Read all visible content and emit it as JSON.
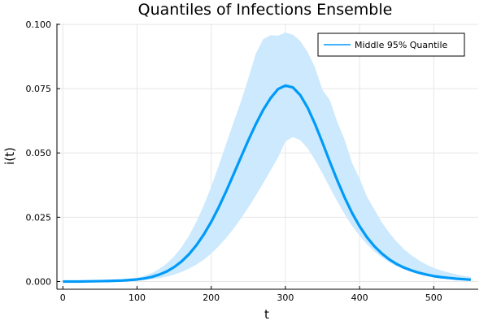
{
  "chart_data": {
    "type": "line",
    "title": "Quantiles of Infections Ensemble",
    "xlabel": "t",
    "ylabel": "i(t)",
    "xlim": [
      -8,
      560
    ],
    "ylim": [
      -0.003,
      0.1003
    ],
    "x_ticks": [
      0,
      100,
      200,
      300,
      400,
      500
    ],
    "x_tick_labels": [
      "0",
      "100",
      "200",
      "300",
      "400",
      "500"
    ],
    "y_ticks": [
      0.0,
      0.025,
      0.05,
      0.075,
      0.1
    ],
    "y_tick_labels": [
      "0.000",
      "0.025",
      "0.050",
      "0.075",
      "0.100"
    ],
    "grid": true,
    "legend_position": "top-right",
    "colors": {
      "line": "#009af9",
      "band": "#cce9fd"
    },
    "series": [
      {
        "name": "Middle 95% Quantile",
        "x": [
          0,
          20,
          40,
          60,
          80,
          100,
          110,
          120,
          130,
          140,
          150,
          160,
          170,
          180,
          190,
          200,
          210,
          220,
          230,
          240,
          250,
          260,
          270,
          280,
          290,
          300,
          310,
          320,
          330,
          340,
          350,
          360,
          370,
          380,
          390,
          400,
          410,
          420,
          430,
          440,
          450,
          460,
          470,
          480,
          490,
          500,
          510,
          520,
          530,
          540,
          550
        ],
        "median": [
          0.0,
          0.0,
          0.0001,
          0.0002,
          0.0004,
          0.0008,
          0.0012,
          0.0018,
          0.0027,
          0.0039,
          0.0056,
          0.0078,
          0.0106,
          0.0141,
          0.0183,
          0.0232,
          0.0288,
          0.035,
          0.0416,
          0.0483,
          0.0549,
          0.0611,
          0.0667,
          0.0713,
          0.0748,
          0.0762,
          0.0755,
          0.0725,
          0.0676,
          0.0612,
          0.054,
          0.0465,
          0.0393,
          0.0326,
          0.0266,
          0.0215,
          0.0172,
          0.0137,
          0.0109,
          0.0086,
          0.0068,
          0.0054,
          0.0043,
          0.0034,
          0.0027,
          0.0021,
          0.0017,
          0.0014,
          0.0011,
          0.0009,
          0.0007
        ],
        "lower": [
          0.0,
          0.0,
          0.0,
          0.0001,
          0.0002,
          0.0004,
          0.0006,
          0.0009,
          0.0013,
          0.0019,
          0.0027,
          0.0037,
          0.005,
          0.0066,
          0.0085,
          0.0109,
          0.0137,
          0.0169,
          0.0205,
          0.0245,
          0.0288,
          0.0334,
          0.0382,
          0.0432,
          0.0482,
          0.0545,
          0.0562,
          0.055,
          0.0518,
          0.0472,
          0.042,
          0.0365,
          0.0311,
          0.0261,
          0.0216,
          0.0178,
          0.0145,
          0.0117,
          0.0094,
          0.0075,
          0.006,
          0.0047,
          0.0037,
          0.0029,
          0.0023,
          0.0018,
          0.0014,
          0.0011,
          0.0008,
          0.0006,
          0.0005
        ],
        "upper": [
          0.0,
          0.0001,
          0.0002,
          0.0004,
          0.0008,
          0.0015,
          0.0022,
          0.0033,
          0.0049,
          0.007,
          0.0098,
          0.0133,
          0.0178,
          0.0232,
          0.0296,
          0.0369,
          0.0449,
          0.0534,
          0.0618,
          0.0699,
          0.0789,
          0.0885,
          0.0942,
          0.0958,
          0.0956,
          0.0968,
          0.096,
          0.0935,
          0.0892,
          0.0832,
          0.0745,
          0.0705,
          0.062,
          0.055,
          0.046,
          0.04,
          0.033,
          0.028,
          0.023,
          0.019,
          0.0155,
          0.0125,
          0.0102,
          0.0082,
          0.0066,
          0.0053,
          0.0043,
          0.0035,
          0.0028,
          0.0022,
          0.0018
        ]
      }
    ]
  }
}
